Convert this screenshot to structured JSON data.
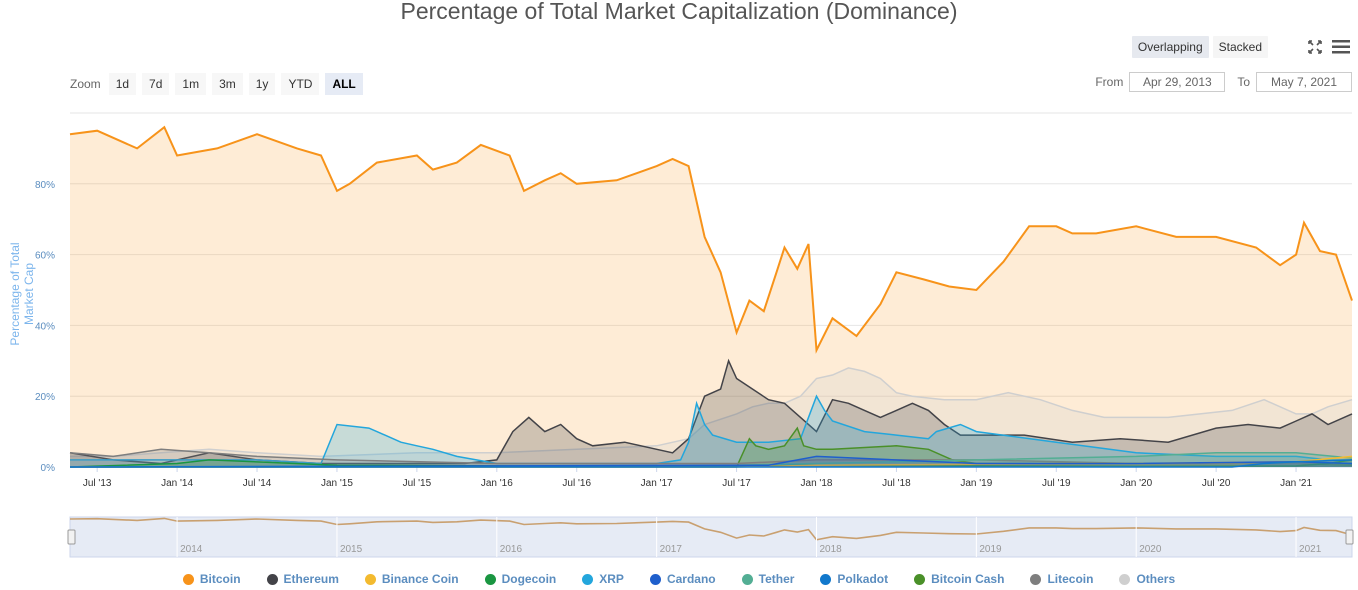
{
  "controls": {
    "view_modes": [
      "Overlapping",
      "Stacked"
    ],
    "active_view": "Overlapping",
    "zoom_label": "Zoom",
    "zoom_buttons": [
      "1d",
      "7d",
      "1m",
      "3m",
      "1y",
      "YTD",
      "ALL"
    ],
    "active_zoom": "ALL",
    "from_label": "From",
    "from_value": "Apr 29, 2013",
    "to_label": "To",
    "to_value": "May 7, 2021"
  },
  "chart_data": {
    "type": "area",
    "title": "Percentage of Total Market Capitalization (Dominance)",
    "ylabel": "Percentage of Total Market Cap",
    "xlabel": "",
    "ylim": [
      0,
      100
    ],
    "y_tick_labels": [
      "0%",
      "20%",
      "40%",
      "60%",
      "80%"
    ],
    "x_tick_labels": [
      "Jul '13",
      "Jan '14",
      "Jul '14",
      "Jan '15",
      "Jul '15",
      "Jan '16",
      "Jul '16",
      "Jan '17",
      "Jul '17",
      "Jan '18",
      "Jul '18",
      "Jan '19",
      "Jul '19",
      "Jan '20",
      "Jul '20",
      "Jan '21"
    ],
    "navigator_labels": [
      "2014",
      "2015",
      "2016",
      "2017",
      "2018",
      "2019",
      "2020",
      "2021"
    ],
    "legend_position": "bottom",
    "series": [
      {
        "name": "Bitcoin",
        "color": "#f7931a",
        "x": [
          2013.33,
          2013.5,
          2013.75,
          2013.92,
          2014.0,
          2014.25,
          2014.5,
          2014.75,
          2014.9,
          2015.0,
          2015.08,
          2015.25,
          2015.5,
          2015.6,
          2015.75,
          2015.9,
          2016.08,
          2016.17,
          2016.3,
          2016.4,
          2016.5,
          2016.75,
          2017.0,
          2017.1,
          2017.2,
          2017.3,
          2017.4,
          2017.5,
          2017.58,
          2017.67,
          2017.75,
          2017.8,
          2017.88,
          2017.95,
          2018.0,
          2018.1,
          2018.25,
          2018.4,
          2018.5,
          2018.67,
          2018.83,
          2019.0,
          2019.17,
          2019.33,
          2019.5,
          2019.6,
          2019.75,
          2020.0,
          2020.25,
          2020.5,
          2020.75,
          2020.9,
          2021.0,
          2021.05,
          2021.15,
          2021.25,
          2021.35
        ],
        "values": [
          94,
          95,
          90,
          96,
          88,
          90,
          94,
          90,
          88,
          78,
          80,
          86,
          88,
          84,
          86,
          91,
          88,
          78,
          81,
          83,
          80,
          81,
          85,
          87,
          85,
          65,
          55,
          38,
          47,
          44,
          55,
          62,
          56,
          63,
          33,
          42,
          37,
          46,
          55,
          53,
          51,
          50,
          58,
          68,
          68,
          66,
          66,
          68,
          65,
          65,
          62,
          57,
          60,
          69,
          61,
          60,
          47
        ]
      },
      {
        "name": "Ethereum",
        "color": "#434348",
        "x": [
          2013.33,
          2013.6,
          2013.9,
          2014.2,
          2014.5,
          2014.9,
          2015.2,
          2015.5,
          2015.8,
          2016.0,
          2016.1,
          2016.2,
          2016.3,
          2016.4,
          2016.5,
          2016.6,
          2016.8,
          2017.0,
          2017.1,
          2017.2,
          2017.25,
          2017.3,
          2017.4,
          2017.45,
          2017.5,
          2017.6,
          2017.7,
          2017.8,
          2017.9,
          2018.0,
          2018.1,
          2018.2,
          2018.3,
          2018.4,
          2018.5,
          2018.6,
          2018.7,
          2018.8,
          2018.9,
          2019.0,
          2019.3,
          2019.6,
          2019.9,
          2020.2,
          2020.5,
          2020.7,
          2020.9,
          2021.0,
          2021.1,
          2021.2,
          2021.35
        ],
        "values": [
          4,
          2,
          1,
          4,
          2,
          1,
          1,
          1,
          1,
          2,
          10,
          14,
          10,
          12,
          8,
          6,
          7,
          5,
          4,
          8,
          14,
          20,
          22,
          30,
          25,
          22,
          19,
          18,
          14,
          10,
          19,
          18,
          16,
          14,
          16,
          18,
          16,
          12,
          9,
          9,
          9,
          7,
          8,
          7,
          11,
          12,
          11,
          13,
          15,
          12,
          15
        ]
      },
      {
        "name": "Binance Coin",
        "color": "#f3ba2f",
        "x": [
          2013.33,
          2017.5,
          2018.0,
          2019.0,
          2019.5,
          2020.0,
          2021.0,
          2021.35
        ],
        "values": [
          0,
          0,
          0.5,
          0.8,
          1,
          1,
          1.5,
          3
        ]
      },
      {
        "name": "Dogecoin",
        "color": "#1a9641",
        "x": [
          2013.33,
          2014.0,
          2014.2,
          2015.0,
          2016.0,
          2017.0,
          2017.5,
          2018.0,
          2020.0,
          2021.0,
          2021.2,
          2021.35
        ],
        "values": [
          0,
          1,
          2,
          0.5,
          0.3,
          0.1,
          0.2,
          0.5,
          0.2,
          0.3,
          1,
          2
        ]
      },
      {
        "name": "XRP",
        "color": "#23a6dc",
        "x": [
          2013.33,
          2014.5,
          2014.9,
          2015.0,
          2015.2,
          2015.3,
          2015.4,
          2015.5,
          2015.6,
          2015.75,
          2016.0,
          2016.5,
          2017.0,
          2017.15,
          2017.2,
          2017.25,
          2017.3,
          2017.35,
          2017.5,
          2017.7,
          2017.9,
          2018.0,
          2018.05,
          2018.1,
          2018.3,
          2018.5,
          2018.7,
          2018.75,
          2018.9,
          2019.0,
          2019.5,
          2020.0,
          2020.5,
          2021.0,
          2021.2,
          2021.35
        ],
        "values": [
          2,
          2,
          1,
          12,
          11,
          9,
          7,
          6,
          5,
          3,
          1,
          1,
          1,
          2,
          7,
          18,
          12,
          9,
          7,
          7,
          8,
          20,
          16,
          13,
          10,
          9,
          8,
          10,
          12,
          10,
          7,
          4,
          3,
          3,
          2,
          2
        ]
      },
      {
        "name": "Cardano",
        "color": "#1f5fcc",
        "x": [
          2013.33,
          2017.7,
          2018.0,
          2019.0,
          2020.0,
          2021.0,
          2021.35
        ],
        "values": [
          0,
          0.5,
          3,
          1,
          1,
          1.5,
          1
        ]
      },
      {
        "name": "Tether",
        "color": "#53ae94",
        "x": [
          2013.33,
          2015.0,
          2016.5,
          2017.5,
          2018.0,
          2019.0,
          2020.0,
          2020.5,
          2021.0,
          2021.35
        ],
        "values": [
          0,
          0,
          0.2,
          0.5,
          1,
          2,
          3,
          4,
          4,
          2.5
        ]
      },
      {
        "name": "Polkadot",
        "color": "#1178cc",
        "x": [
          2013.33,
          2020.6,
          2020.8,
          2021.0,
          2021.35
        ],
        "values": [
          0,
          0,
          1,
          1.5,
          2
        ]
      },
      {
        "name": "Bitcoin Cash",
        "color": "#4a9029",
        "x": [
          2013.33,
          2017.5,
          2017.58,
          2017.62,
          2017.7,
          2017.8,
          2017.88,
          2017.92,
          2018.0,
          2018.1,
          2018.5,
          2018.7,
          2018.85,
          2019.0,
          2020.0,
          2021.0,
          2021.35
        ],
        "values": [
          0,
          0,
          8,
          6,
          5,
          6,
          11,
          6,
          5,
          5,
          6,
          5,
          2,
          1,
          1,
          1,
          0.5
        ]
      },
      {
        "name": "Litecoin",
        "color": "#7e7e7e",
        "x": [
          2013.33,
          2013.6,
          2013.9,
          2014.2,
          2014.5,
          2015.0,
          2016.0,
          2017.0,
          2017.5,
          2018.0,
          2019.0,
          2020.0,
          2021.0,
          2021.35
        ],
        "values": [
          4,
          3,
          5,
          4,
          3,
          2,
          1,
          1,
          1,
          2,
          2,
          1,
          1,
          1
        ]
      },
      {
        "name": "Others",
        "color": "#cfcfcf",
        "x": [
          2013.33,
          2013.6,
          2013.9,
          2014.2,
          2014.5,
          2014.9,
          2015.5,
          2016.0,
          2016.5,
          2017.0,
          2017.2,
          2017.3,
          2017.5,
          2017.6,
          2017.7,
          2017.8,
          2017.9,
          2018.0,
          2018.1,
          2018.2,
          2018.3,
          2018.4,
          2018.5,
          2018.6,
          2018.8,
          2019.0,
          2019.2,
          2019.4,
          2019.6,
          2019.8,
          2020.0,
          2020.2,
          2020.4,
          2020.6,
          2020.8,
          2021.0,
          2021.1,
          2021.2,
          2021.35
        ],
        "values": [
          3,
          3,
          4,
          5,
          4,
          3,
          4,
          4,
          5,
          6,
          8,
          12,
          15,
          17,
          18,
          18,
          20,
          25,
          26,
          28,
          27,
          25,
          21,
          20,
          19,
          19,
          21,
          19,
          16,
          14,
          14,
          14,
          15,
          16,
          19,
          15,
          15,
          17,
          19
        ]
      }
    ]
  }
}
